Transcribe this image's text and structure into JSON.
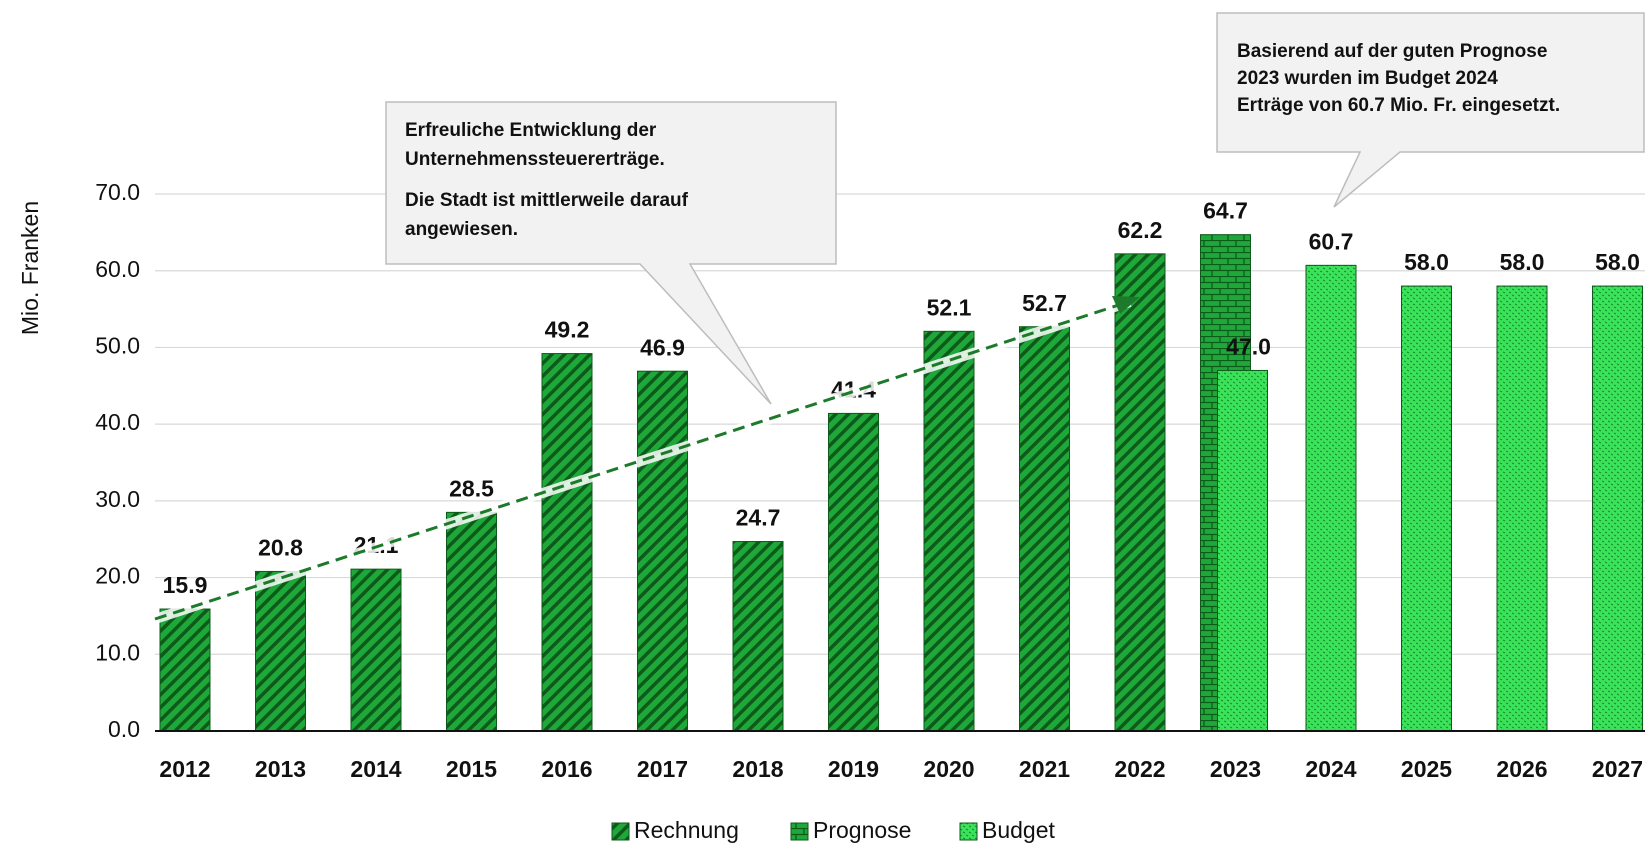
{
  "chart_data": {
    "type": "bar",
    "y_label": "Mio. Franken",
    "categories": [
      "2012",
      "2013",
      "2014",
      "2015",
      "2016",
      "2017",
      "2018",
      "2019",
      "2020",
      "2021",
      "2022",
      "2023",
      "2024",
      "2025",
      "2026",
      "2027"
    ],
    "series": [
      {
        "name": "Rechnung",
        "color": "#1fa83a",
        "pattern": "hatch",
        "values": [
          15.9,
          20.8,
          21.1,
          28.5,
          49.2,
          46.9,
          24.7,
          41.4,
          52.1,
          52.7,
          62.2,
          null,
          null,
          null,
          null,
          null
        ],
        "value_labels": [
          "15.9",
          "20.8",
          "21.1",
          "28.5",
          "49.2",
          "46.9",
          "24.7",
          "41.4",
          "52.1",
          "52.7",
          "62.2",
          null,
          null,
          null,
          null,
          null
        ]
      },
      {
        "name": "Prognose",
        "color": "#1fa83a",
        "pattern": "brick",
        "values": [
          null,
          null,
          null,
          null,
          null,
          null,
          null,
          null,
          null,
          null,
          null,
          64.7,
          null,
          null,
          null,
          null
        ],
        "value_labels": [
          null,
          null,
          null,
          null,
          null,
          null,
          null,
          null,
          null,
          null,
          null,
          "64.7",
          null,
          null,
          null,
          null
        ]
      },
      {
        "name": "Budget",
        "color": "#3ae35a",
        "pattern": "dots",
        "values": [
          null,
          null,
          null,
          null,
          null,
          null,
          null,
          null,
          null,
          null,
          null,
          47.0,
          60.7,
          58.0,
          58.0,
          58.0
        ],
        "value_labels": [
          null,
          null,
          null,
          null,
          null,
          null,
          null,
          null,
          null,
          null,
          null,
          "47.0",
          "60.7",
          "58.0",
          "58.0",
          "58.0"
        ]
      }
    ],
    "ylim": [
      0,
      70
    ],
    "yticks": [
      {
        "value": 0,
        "label": "0.0"
      },
      {
        "value": 10,
        "label": "10.0"
      },
      {
        "value": 20,
        "label": "20.0"
      },
      {
        "value": 30,
        "label": "30.0"
      },
      {
        "value": 40,
        "label": "40.0"
      },
      {
        "value": 50,
        "label": "50.0"
      },
      {
        "value": 60,
        "label": "60.0"
      },
      {
        "value": 70,
        "label": "70.0"
      }
    ],
    "grid": true,
    "legend": "bottom",
    "annotations": [
      {
        "lines": [
          "Erfreuliche Entwicklung der",
          "Unternehmenssteuererträge.",
          "Die Stadt ist mittlerweile darauf",
          "angewiesen."
        ]
      },
      {
        "lines": [
          "Basierend auf der guten Prognose",
          "2023 wurden im Budget 2024",
          "Erträge von 60.7 Mio. Fr. eingesetzt."
        ]
      }
    ]
  }
}
